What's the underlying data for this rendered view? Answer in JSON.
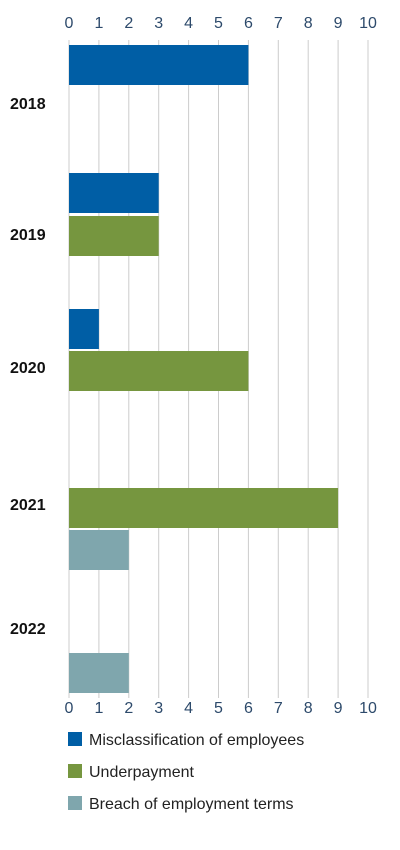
{
  "chart_data": {
    "type": "bar",
    "orientation": "horizontal",
    "title": "",
    "xlabel": "",
    "ylabel": "",
    "xlim": [
      0,
      10
    ],
    "xticks": [
      0,
      1,
      2,
      3,
      4,
      5,
      6,
      7,
      8,
      9,
      10
    ],
    "grid": true,
    "axis_labels_position": "top and bottom",
    "legend_position": "bottom-left",
    "categories": [
      "2018",
      "2019",
      "2020",
      "2021",
      "2022"
    ],
    "series": [
      {
        "name": "Misclassification of employees",
        "color": "#005ea5",
        "values": [
          6,
          3,
          1,
          null,
          null
        ]
      },
      {
        "name": "Underpayment",
        "color": "#76963f",
        "values": [
          null,
          3,
          6,
          9,
          null
        ]
      },
      {
        "name": "Breach of employment terms",
        "color": "#7fa6ad",
        "values": [
          null,
          null,
          null,
          2,
          2
        ]
      }
    ]
  }
}
